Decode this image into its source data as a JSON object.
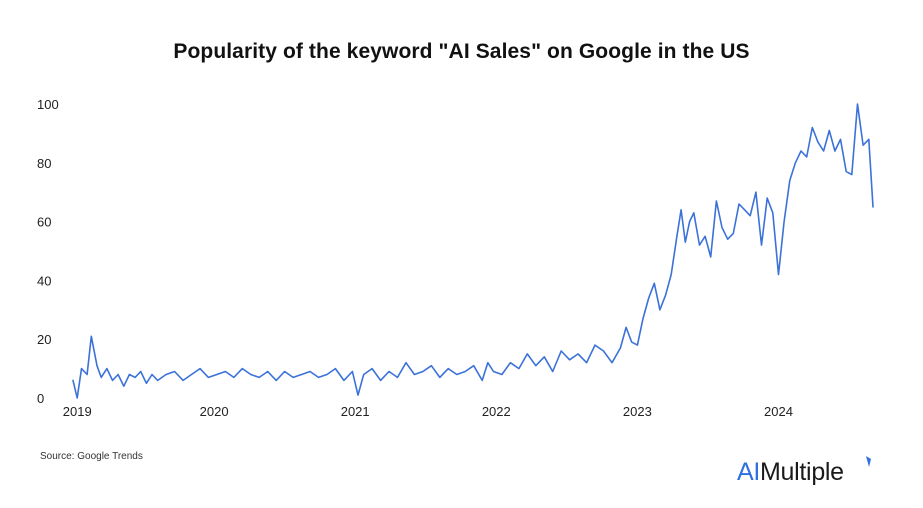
{
  "chart_data": {
    "type": "line",
    "title": "Popularity of the keyword \"AI Sales\" on Google in the US",
    "xlabel": "",
    "ylabel": "",
    "ylim": [
      0,
      100
    ],
    "yticks": [
      "0",
      "20",
      "40",
      "60",
      "80",
      "100"
    ],
    "xticks": [
      {
        "label": "2019",
        "value": 2019.03
      },
      {
        "label": "2020",
        "value": 2020.0
      },
      {
        "label": "2021",
        "value": 2021.0
      },
      {
        "label": "2022",
        "value": 2022.0
      },
      {
        "label": "2023",
        "value": 2023.0
      },
      {
        "label": "2024",
        "value": 2024.0
      }
    ],
    "grid": false,
    "line_color": "#3b72d9",
    "series": [
      {
        "x": [
          2019.0,
          2019.03,
          2019.06,
          2019.1,
          2019.13,
          2019.17,
          2019.2,
          2019.24,
          2019.28,
          2019.32,
          2019.36,
          2019.4,
          2019.44,
          2019.48,
          2019.52,
          2019.56,
          2019.6,
          2019.66,
          2019.72,
          2019.78,
          2019.84,
          2019.9,
          2019.96,
          2020.02,
          2020.08,
          2020.14,
          2020.2,
          2020.26,
          2020.32,
          2020.38,
          2020.44,
          2020.5,
          2020.56,
          2020.62,
          2020.68,
          2020.74,
          2020.8,
          2020.86,
          2020.92,
          2020.98,
          2021.02,
          2021.06,
          2021.12,
          2021.18,
          2021.24,
          2021.3,
          2021.36,
          2021.42,
          2021.48,
          2021.54,
          2021.6,
          2021.66,
          2021.72,
          2021.78,
          2021.84,
          2021.9,
          2021.94,
          2021.98,
          2022.04,
          2022.1,
          2022.16,
          2022.22,
          2022.28,
          2022.34,
          2022.4,
          2022.46,
          2022.52,
          2022.58,
          2022.64,
          2022.7,
          2022.76,
          2022.82,
          2022.88,
          2022.92,
          2022.96,
          2023.0,
          2023.04,
          2023.08,
          2023.12,
          2023.16,
          2023.2,
          2023.24,
          2023.28,
          2023.31,
          2023.34,
          2023.37,
          2023.4,
          2023.44,
          2023.48,
          2023.52,
          2023.56,
          2023.6,
          2023.64,
          2023.68,
          2023.72,
          2023.76,
          2023.8,
          2023.84,
          2023.88,
          2023.92,
          2023.96,
          2024.0,
          2024.04,
          2024.08,
          2024.12,
          2024.16,
          2024.2,
          2024.24,
          2024.28,
          2024.32,
          2024.36,
          2024.4,
          2024.44,
          2024.48,
          2024.52,
          2024.56,
          2024.6,
          2024.64,
          2024.67
        ],
        "values": [
          6,
          0,
          10,
          8,
          21,
          11,
          7,
          10,
          6,
          8,
          4,
          8,
          7,
          9,
          5,
          8,
          6,
          8,
          9,
          6,
          8,
          10,
          7,
          8,
          9,
          7,
          10,
          8,
          7,
          9,
          6,
          9,
          7,
          8,
          9,
          7,
          8,
          10,
          6,
          9,
          1,
          8,
          10,
          6,
          9,
          7,
          12,
          8,
          9,
          11,
          7,
          10,
          8,
          9,
          11,
          6,
          12,
          9,
          8,
          12,
          10,
          15,
          11,
          14,
          9,
          16,
          13,
          15,
          12,
          18,
          16,
          12,
          17,
          24,
          19,
          18,
          27,
          34,
          39,
          30,
          35,
          42,
          55,
          64,
          53,
          60,
          63,
          52,
          55,
          48,
          67,
          58,
          54,
          56,
          66,
          64,
          62,
          70,
          52,
          68,
          63,
          42,
          60,
          74,
          80,
          84,
          82,
          92,
          87,
          84,
          91,
          84,
          88,
          77,
          76,
          100,
          86,
          88,
          65
        ]
      }
    ]
  },
  "source": "Source: Google Trends",
  "logo": {
    "prefix": "AI",
    "rest": "Multiple"
  }
}
